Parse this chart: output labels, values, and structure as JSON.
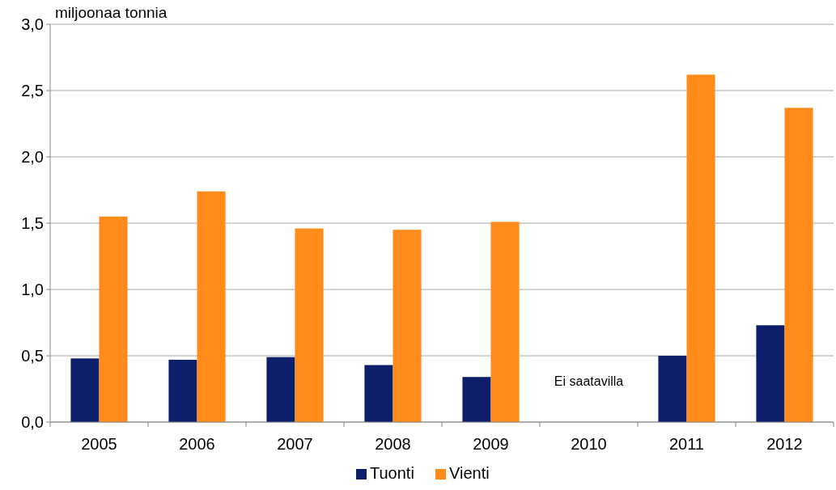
{
  "chart_data": {
    "type": "bar",
    "ylabel": "miljoonaa tonnia",
    "categories": [
      "2005",
      "2006",
      "2007",
      "2008",
      "2009",
      "2010",
      "2011",
      "2012"
    ],
    "series": [
      {
        "name": "Tuonti",
        "color": "#0d1f6b",
        "values": [
          0.48,
          0.47,
          0.49,
          0.43,
          0.34,
          null,
          0.5,
          0.73
        ]
      },
      {
        "name": "Vienti",
        "color": "#ff8c1a",
        "values": [
          1.55,
          1.74,
          1.46,
          1.45,
          1.51,
          null,
          2.62,
          2.37
        ]
      }
    ],
    "ylim": [
      0,
      3
    ],
    "yticks": [
      {
        "value": 0,
        "label": "0,0"
      },
      {
        "value": 0.5,
        "label": "0,5"
      },
      {
        "value": 1,
        "label": "1,0"
      },
      {
        "value": 1.5,
        "label": "1,5"
      },
      {
        "value": 2,
        "label": "2,0"
      },
      {
        "value": 2.5,
        "label": "2,5"
      },
      {
        "value": 3,
        "label": "3,0"
      }
    ],
    "grid": "y",
    "legend": "bottom",
    "annotations": [
      "Ei saatavilla"
    ]
  }
}
